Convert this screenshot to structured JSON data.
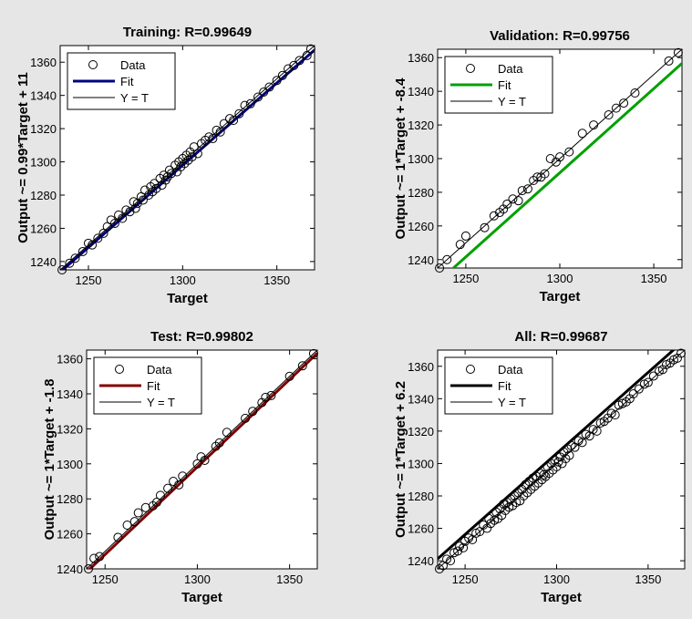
{
  "chart_data": [
    {
      "type": "scatter",
      "title": "Training: R=0.99649",
      "xlabel": "Target",
      "ylabel": "Output ~= 0.99*Target + 11",
      "xlim": [
        1235,
        1370
      ],
      "ylim": [
        1235,
        1370
      ],
      "xticks": [
        1250,
        1300,
        1350
      ],
      "yticks": [
        1240,
        1260,
        1280,
        1300,
        1320,
        1340,
        1360
      ],
      "fit_color": "#000080",
      "fit": {
        "slope": 0.99,
        "intercept": 11
      },
      "legend": {
        "placement": "top-left",
        "entries": [
          "Data",
          "Fit",
          "Y = T"
        ]
      },
      "series": [
        {
          "name": "Data",
          "kind": "points",
          "x": [
            1236,
            1240,
            1243,
            1247,
            1250,
            1252,
            1255,
            1258,
            1260,
            1262,
            1264,
            1266,
            1268,
            1270,
            1272,
            1274,
            1275,
            1276,
            1278,
            1279,
            1280,
            1282,
            1283,
            1284,
            1285,
            1286,
            1288,
            1289,
            1290,
            1291,
            1292,
            1293,
            1294,
            1296,
            1297,
            1298,
            1299,
            1300,
            1301,
            1302,
            1303,
            1304,
            1305,
            1306,
            1308,
            1310,
            1312,
            1314,
            1316,
            1318,
            1320,
            1322,
            1325,
            1327,
            1330,
            1333,
            1336,
            1340,
            1343,
            1346,
            1350,
            1353,
            1356,
            1359,
            1362,
            1366,
            1368
          ],
          "y": [
            1235,
            1239,
            1242,
            1246,
            1251,
            1250,
            1254,
            1257,
            1261,
            1265,
            1263,
            1268,
            1266,
            1271,
            1270,
            1276,
            1272,
            1275,
            1279,
            1277,
            1283,
            1280,
            1285,
            1282,
            1287,
            1284,
            1290,
            1286,
            1292,
            1289,
            1291,
            1295,
            1293,
            1298,
            1294,
            1300,
            1297,
            1302,
            1299,
            1304,
            1301,
            1306,
            1303,
            1309,
            1305,
            1311,
            1313,
            1315,
            1314,
            1319,
            1318,
            1323,
            1326,
            1325,
            1329,
            1334,
            1335,
            1339,
            1342,
            1345,
            1349,
            1352,
            1356,
            1358,
            1361,
            1364,
            1368
          ]
        },
        {
          "name": "Fit",
          "kind": "line"
        },
        {
          "name": "Y = T",
          "kind": "line"
        }
      ]
    },
    {
      "type": "scatter",
      "title": "Validation: R=0.99756",
      "xlabel": "Target",
      "ylabel": "Output ~= 1*Target + -8.4",
      "xlim": [
        1235,
        1365
      ],
      "ylim": [
        1235,
        1365
      ],
      "xticks": [
        1250,
        1300,
        1350
      ],
      "yticks": [
        1240,
        1260,
        1280,
        1300,
        1320,
        1340,
        1360
      ],
      "fit_color": "#00a000",
      "fit": {
        "slope": 1,
        "intercept": -8.4
      },
      "legend": {
        "placement": "top-left",
        "entries": [
          "Data",
          "Fit",
          "Y = T"
        ]
      },
      "series": [
        {
          "name": "Data",
          "kind": "points",
          "x": [
            1236,
            1240,
            1247,
            1250,
            1260,
            1265,
            1268,
            1270,
            1272,
            1275,
            1278,
            1280,
            1283,
            1286,
            1288,
            1290,
            1292,
            1295,
            1298,
            1300,
            1305,
            1312,
            1318,
            1326,
            1330,
            1334,
            1340,
            1358,
            1363
          ],
          "y": [
            1235,
            1240,
            1249,
            1254,
            1259,
            1266,
            1268,
            1270,
            1273,
            1276,
            1275,
            1281,
            1282,
            1287,
            1289,
            1289,
            1291,
            1300,
            1298,
            1301,
            1304,
            1315,
            1320,
            1326,
            1330,
            1333,
            1339,
            1358,
            1363
          ]
        },
        {
          "name": "Fit",
          "kind": "line"
        },
        {
          "name": "Y = T",
          "kind": "line"
        }
      ]
    },
    {
      "type": "scatter",
      "title": "Test: R=0.99802",
      "xlabel": "Target",
      "ylabel": "Output ~= 1*Target + -1.8",
      "xlim": [
        1240,
        1365
      ],
      "ylim": [
        1240,
        1365
      ],
      "xticks": [
        1250,
        1300,
        1350
      ],
      "yticks": [
        1240,
        1260,
        1280,
        1300,
        1320,
        1340,
        1360
      ],
      "fit_color": "#800000",
      "fit": {
        "slope": 1,
        "intercept": -1.8
      },
      "legend": {
        "placement": "top-left",
        "entries": [
          "Data",
          "Fit",
          "Y = T"
        ]
      },
      "series": [
        {
          "name": "Data",
          "kind": "points",
          "x": [
            1241,
            1244,
            1247,
            1257,
            1262,
            1266,
            1268,
            1272,
            1276,
            1278,
            1280,
            1284,
            1287,
            1290,
            1292,
            1300,
            1302,
            1304,
            1310,
            1312,
            1316,
            1326,
            1330,
            1335,
            1337,
            1340,
            1350,
            1357,
            1363
          ],
          "y": [
            1240,
            1246,
            1247,
            1258,
            1265,
            1267,
            1272,
            1275,
            1276,
            1278,
            1282,
            1286,
            1290,
            1288,
            1293,
            1300,
            1304,
            1302,
            1310,
            1312,
            1318,
            1326,
            1330,
            1335,
            1338,
            1339,
            1350,
            1356,
            1363
          ]
        },
        {
          "name": "Fit",
          "kind": "line"
        },
        {
          "name": "Y = T",
          "kind": "line"
        }
      ]
    },
    {
      "type": "scatter",
      "title": "All: R=0.99687",
      "xlabel": "Target",
      "ylabel": "Output ~= 1*Target + 6.2",
      "xlim": [
        1235,
        1370
      ],
      "ylim": [
        1235,
        1370
      ],
      "xticks": [
        1250,
        1300,
        1350
      ],
      "yticks": [
        1240,
        1260,
        1280,
        1300,
        1320,
        1340,
        1360
      ],
      "fit_color": "#000000",
      "fit": {
        "slope": 1,
        "intercept": 6.2
      },
      "legend": {
        "placement": "top-left",
        "entries": [
          "Data",
          "Fit",
          "Y = T"
        ]
      },
      "series": [
        {
          "name": "Data",
          "kind": "points",
          "x": [
            1236,
            1238,
            1240,
            1242,
            1244,
            1246,
            1247,
            1249,
            1250,
            1252,
            1254,
            1256,
            1258,
            1260,
            1262,
            1263,
            1264,
            1266,
            1267,
            1268,
            1269,
            1270,
            1271,
            1272,
            1273,
            1274,
            1275,
            1276,
            1277,
            1278,
            1279,
            1280,
            1281,
            1282,
            1283,
            1284,
            1285,
            1286,
            1287,
            1288,
            1289,
            1290,
            1291,
            1292,
            1293,
            1294,
            1295,
            1296,
            1297,
            1298,
            1299,
            1300,
            1301,
            1302,
            1303,
            1304,
            1305,
            1306,
            1307,
            1308,
            1310,
            1312,
            1314,
            1316,
            1318,
            1320,
            1322,
            1324,
            1326,
            1328,
            1330,
            1332,
            1334,
            1336,
            1338,
            1340,
            1342,
            1345,
            1348,
            1350,
            1353,
            1356,
            1358,
            1360,
            1362,
            1364,
            1366,
            1368
          ],
          "y": [
            1235,
            1237,
            1241,
            1240,
            1245,
            1246,
            1249,
            1248,
            1252,
            1254,
            1253,
            1257,
            1258,
            1262,
            1260,
            1266,
            1263,
            1265,
            1270,
            1266,
            1272,
            1268,
            1275,
            1271,
            1276,
            1273,
            1278,
            1274,
            1280,
            1276,
            1282,
            1277,
            1284,
            1280,
            1287,
            1282,
            1289,
            1284,
            1291,
            1286,
            1292,
            1288,
            1294,
            1290,
            1293,
            1292,
            1298,
            1294,
            1300,
            1296,
            1302,
            1298,
            1301,
            1304,
            1300,
            1307,
            1303,
            1309,
            1305,
            1311,
            1310,
            1314,
            1313,
            1318,
            1317,
            1321,
            1320,
            1325,
            1326,
            1328,
            1331,
            1330,
            1336,
            1337,
            1338,
            1340,
            1343,
            1346,
            1349,
            1350,
            1354,
            1357,
            1358,
            1361,
            1362,
            1364,
            1365,
            1368
          ]
        },
        {
          "name": "Fit",
          "kind": "line"
        },
        {
          "name": "Y = T",
          "kind": "line"
        }
      ]
    }
  ]
}
